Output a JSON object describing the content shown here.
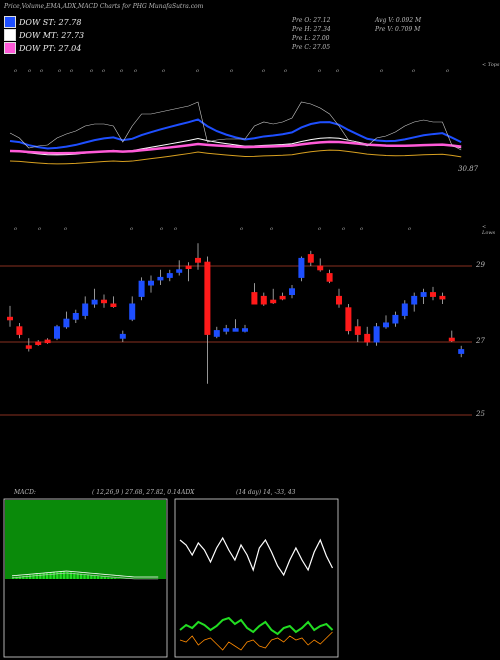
{
  "header": {
    "title": "Price,Volume,EMA,ADX,MACD Charts for PHG MunafaSutra.com"
  },
  "legend": [
    {
      "label": "DOW ST: 27.78",
      "color": "#1e4fff"
    },
    {
      "label": "DOW MT: 27.73",
      "color": "#ffffff"
    },
    {
      "label": "DOW PT: 27.04",
      "color": "#ff5ad8"
    }
  ],
  "ohlc": {
    "open": "Pre   O: 27.12",
    "high": "Pre   H: 27.34",
    "low": "Pre   L: 27.00",
    "close": "Pre   C: 27.05",
    "avg_vol": "Avg V: 0.092  M",
    "pre_vol": "Pre   V: 0.709 M"
  },
  "ema_panel": {
    "right_tag": "< Tops",
    "price_label": "30.87"
  },
  "price_panel": {
    "right_tag": "< Lows",
    "y_ticks": [
      "29",
      "27",
      "25"
    ],
    "candles": [
      {
        "o": 27.65,
        "h": 27.95,
        "l": 27.4,
        "c": 27.65,
        "color": "red"
      },
      {
        "o": 27.2,
        "h": 27.5,
        "l": 27.1,
        "c": 27.4,
        "color": "red"
      },
      {
        "o": 26.9,
        "h": 27.1,
        "l": 26.75,
        "c": 26.9,
        "color": "red"
      },
      {
        "o": 26.95,
        "h": 27.05,
        "l": 26.9,
        "c": 27.0,
        "color": "red"
      },
      {
        "o": 27.0,
        "h": 27.1,
        "l": 26.95,
        "c": 27.05,
        "color": "red"
      },
      {
        "o": 27.1,
        "h": 27.45,
        "l": 27.05,
        "c": 27.4,
        "color": "blue"
      },
      {
        "o": 27.4,
        "h": 27.8,
        "l": 27.35,
        "c": 27.6,
        "color": "blue"
      },
      {
        "o": 27.6,
        "h": 27.85,
        "l": 27.5,
        "c": 27.75,
        "color": "blue"
      },
      {
        "o": 27.7,
        "h": 28.2,
        "l": 27.6,
        "c": 28.0,
        "color": "blue"
      },
      {
        "o": 28.0,
        "h": 28.4,
        "l": 27.9,
        "c": 28.1,
        "color": "blue"
      },
      {
        "o": 28.1,
        "h": 28.25,
        "l": 27.9,
        "c": 28.1,
        "color": "red"
      },
      {
        "o": 28.0,
        "h": 28.2,
        "l": 27.9,
        "c": 28.0,
        "color": "red"
      },
      {
        "o": 27.1,
        "h": 27.3,
        "l": 27.0,
        "c": 27.2,
        "color": "blue"
      },
      {
        "o": 27.6,
        "h": 28.2,
        "l": 27.55,
        "c": 28.0,
        "color": "blue"
      },
      {
        "o": 28.2,
        "h": 28.7,
        "l": 28.1,
        "c": 28.6,
        "color": "blue"
      },
      {
        "o": 28.5,
        "h": 28.75,
        "l": 28.3,
        "c": 28.6,
        "color": "blue"
      },
      {
        "o": 28.7,
        "h": 28.9,
        "l": 28.5,
        "c": 28.7,
        "color": "blue"
      },
      {
        "o": 28.7,
        "h": 28.9,
        "l": 28.6,
        "c": 28.8,
        "color": "blue"
      },
      {
        "o": 28.9,
        "h": 29.15,
        "l": 28.75,
        "c": 28.9,
        "color": "blue"
      },
      {
        "o": 29.0,
        "h": 29.1,
        "l": 28.6,
        "c": 29.0,
        "color": "red"
      },
      {
        "o": 29.1,
        "h": 29.6,
        "l": 28.9,
        "c": 29.2,
        "color": "red"
      },
      {
        "o": 29.1,
        "h": 29.25,
        "l": 25.9,
        "c": 27.2,
        "color": "red"
      },
      {
        "o": 27.15,
        "h": 27.4,
        "l": 27.1,
        "c": 27.3,
        "color": "blue"
      },
      {
        "o": 27.3,
        "h": 27.45,
        "l": 27.2,
        "c": 27.35,
        "color": "blue"
      },
      {
        "o": 27.35,
        "h": 27.6,
        "l": 27.3,
        "c": 27.35,
        "color": "blue"
      },
      {
        "o": 27.3,
        "h": 27.45,
        "l": 27.25,
        "c": 27.35,
        "color": "blue"
      },
      {
        "o": 28.3,
        "h": 28.55,
        "l": 28.0,
        "c": 28.0,
        "color": "red"
      },
      {
        "o": 28.0,
        "h": 28.3,
        "l": 27.95,
        "c": 28.2,
        "color": "red"
      },
      {
        "o": 28.1,
        "h": 28.4,
        "l": 28.0,
        "c": 28.1,
        "color": "red"
      },
      {
        "o": 28.2,
        "h": 28.3,
        "l": 28.1,
        "c": 28.2,
        "color": "red"
      },
      {
        "o": 28.25,
        "h": 28.5,
        "l": 28.15,
        "c": 28.4,
        "color": "blue"
      },
      {
        "o": 28.7,
        "h": 29.25,
        "l": 28.6,
        "c": 29.2,
        "color": "blue"
      },
      {
        "o": 29.3,
        "h": 29.4,
        "l": 29.0,
        "c": 29.1,
        "color": "red"
      },
      {
        "o": 29.0,
        "h": 29.2,
        "l": 28.85,
        "c": 28.9,
        "color": "red"
      },
      {
        "o": 28.8,
        "h": 28.9,
        "l": 28.55,
        "c": 28.6,
        "color": "red"
      },
      {
        "o": 28.2,
        "h": 28.4,
        "l": 27.9,
        "c": 28.0,
        "color": "red"
      },
      {
        "o": 27.9,
        "h": 28.0,
        "l": 27.2,
        "c": 27.3,
        "color": "red"
      },
      {
        "o": 27.4,
        "h": 27.6,
        "l": 27.0,
        "c": 27.2,
        "color": "red"
      },
      {
        "o": 27.2,
        "h": 27.4,
        "l": 26.9,
        "c": 27.0,
        "color": "red"
      },
      {
        "o": 27.0,
        "h": 27.5,
        "l": 26.9,
        "c": 27.4,
        "color": "blue"
      },
      {
        "o": 27.4,
        "h": 27.7,
        "l": 27.35,
        "c": 27.5,
        "color": "blue"
      },
      {
        "o": 27.5,
        "h": 27.8,
        "l": 27.4,
        "c": 27.7,
        "color": "blue"
      },
      {
        "o": 27.7,
        "h": 28.1,
        "l": 27.6,
        "c": 28.0,
        "color": "blue"
      },
      {
        "o": 28.0,
        "h": 28.3,
        "l": 27.8,
        "c": 28.2,
        "color": "blue"
      },
      {
        "o": 28.2,
        "h": 28.4,
        "l": 28.0,
        "c": 28.3,
        "color": "blue"
      },
      {
        "o": 28.3,
        "h": 28.45,
        "l": 28.1,
        "c": 28.2,
        "color": "red"
      },
      {
        "o": 28.2,
        "h": 28.3,
        "l": 28.0,
        "c": 28.2,
        "color": "red"
      },
      {
        "o": 27.1,
        "h": 27.3,
        "l": 27.0,
        "c": 27.05,
        "color": "red"
      },
      {
        "o": 26.7,
        "h": 26.9,
        "l": 26.6,
        "c": 26.8,
        "color": "blue"
      }
    ]
  },
  "macd_panel": {
    "label": "MACD:",
    "params": "( 12,26,9 ) 27.68,  27.82,  0.14"
  },
  "adx_panel": {
    "label": "ADX",
    "params": "(14  day) 14,  -33,  43"
  },
  "colors": {
    "up": "#1e4fff",
    "down": "#ff1a1a",
    "ema_short": "#1e4fff",
    "ema_long": "#ff5ad8",
    "macd_hist": "#22dd22",
    "adx_green": "#22dd22",
    "adx_orange": "#ff8a00"
  },
  "chart_data": [
    {
      "type": "line",
      "title": "Price,Volume,EMA,ADX,MACD Charts for PHG MunafaSutra.com",
      "series": [
        {
          "name": "DOW ST: 27.78"
        },
        {
          "name": "DOW MT: 27.73"
        },
        {
          "name": "DOW PT: 27.04"
        }
      ]
    },
    {
      "type": "bar",
      "title": "",
      "ylim": [
        24.5,
        30.2
      ],
      "y_ticks": [
        29,
        27,
        25
      ]
    }
  ]
}
